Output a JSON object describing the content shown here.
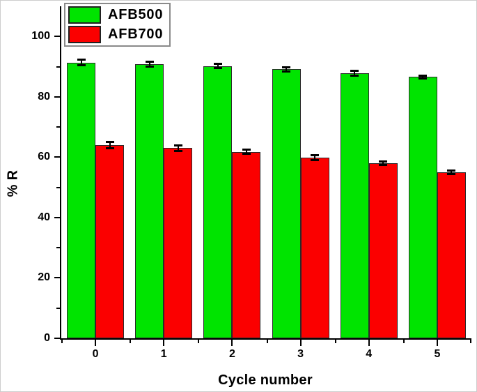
{
  "figure": {
    "background": "#ffffff",
    "frame_border_color": "#cdcdcd"
  },
  "chart_data": {
    "type": "bar",
    "title": "",
    "xlabel": "Cycle number",
    "ylabel": "% R",
    "categories": [
      "0",
      "1",
      "2",
      "3",
      "4",
      "5"
    ],
    "series": [
      {
        "name": "AFB500",
        "color": "#00e400",
        "values": [
          91.4,
          90.9,
          90.2,
          89.1,
          87.8,
          86.6
        ],
        "errors": [
          1.0,
          0.9,
          0.8,
          0.8,
          0.9,
          0.6
        ]
      },
      {
        "name": "AFB700",
        "color": "#fb0000",
        "values": [
          64.0,
          63.0,
          61.8,
          59.9,
          58.0,
          55.1
        ],
        "errors": [
          1.2,
          1.0,
          0.9,
          0.9,
          0.8,
          0.7
        ]
      }
    ],
    "ylim": [
      0,
      110
    ],
    "yticks": [
      0,
      20,
      40,
      60,
      80,
      100
    ],
    "yticks_minor": [
      10,
      30,
      50,
      70,
      90
    ],
    "xticks_minor_positions": [
      -0.5,
      0.5,
      1.5,
      2.5,
      3.5,
      4.5,
      5.5
    ],
    "grid": false,
    "legend_position": "top-left",
    "bar_edge_color": "#2a2a2a",
    "error_bar_color": "#000000",
    "axis_color": "#000000"
  }
}
